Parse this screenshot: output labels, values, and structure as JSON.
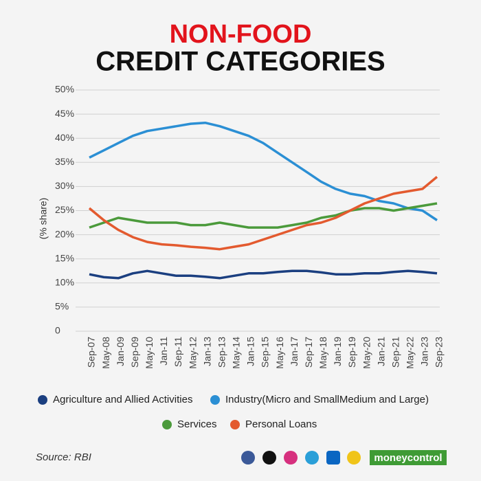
{
  "chart_data": {
    "type": "line",
    "title": "NON-FOOD",
    "subtitle": "CREDIT CATEGORIES",
    "y_label": "(% share)",
    "categories": [
      "Sep-07",
      "May-08",
      "Jan-09",
      "Sep-09",
      "May-10",
      "Jan-11",
      "Sep-11",
      "May-12",
      "Jan-13",
      "Sep-13",
      "May-14",
      "Jan-15",
      "Sep-15",
      "May-16",
      "Jan-17",
      "Sep-17",
      "May-18",
      "Jan-19",
      "Sep-19",
      "May-20",
      "Jan-21",
      "Sep-21",
      "May-22",
      "Jan-23",
      "Sep-23"
    ],
    "series": [
      {
        "name": "Agriculture and Allied Activities",
        "color": "#1b3f80",
        "values": [
          11.8,
          11.2,
          11.0,
          12.0,
          12.5,
          12.0,
          11.5,
          11.5,
          11.3,
          11.0,
          11.5,
          12.0,
          12.0,
          12.3,
          12.5,
          12.5,
          12.2,
          11.8,
          11.8,
          12.0,
          12.0,
          12.3,
          12.5,
          12.3,
          12.0
        ]
      },
      {
        "name": "Industry(Micro and SmallMedium and Large)",
        "color": "#2b8fd4",
        "values": [
          36.0,
          37.5,
          39.0,
          40.5,
          41.5,
          42.0,
          42.5,
          43.0,
          43.2,
          42.5,
          41.5,
          40.5,
          39.0,
          37.0,
          35.0,
          33.0,
          31.0,
          29.5,
          28.5,
          28.0,
          27.0,
          26.5,
          25.5,
          25.0,
          23.0
        ]
      },
      {
        "name": "Services",
        "color": "#4b9a3b",
        "values": [
          21.5,
          22.5,
          23.5,
          23.0,
          22.5,
          22.5,
          22.5,
          22.0,
          22.0,
          22.5,
          22.0,
          21.5,
          21.5,
          21.5,
          22.0,
          22.5,
          23.5,
          24.0,
          25.0,
          25.5,
          25.5,
          25.0,
          25.5,
          26.0,
          26.5
        ]
      },
      {
        "name": "Personal Loans",
        "color": "#e35a2f",
        "values": [
          25.5,
          23.0,
          21.0,
          19.5,
          18.5,
          18.0,
          17.8,
          17.5,
          17.3,
          17.0,
          17.5,
          18.0,
          19.0,
          20.0,
          21.0,
          22.0,
          22.5,
          23.5,
          25.0,
          26.5,
          27.5,
          28.5,
          29.0,
          29.5,
          32.0
        ]
      }
    ],
    "ylim": [
      0,
      50
    ],
    "yticks": [
      0,
      {
        "value": 5,
        "label": "5%"
      },
      {
        "value": 10,
        "label": "10%"
      },
      {
        "value": 15,
        "label": "15%"
      },
      {
        "value": 20,
        "label": "20%"
      },
      {
        "value": 25,
        "label": "25%"
      },
      {
        "value": 30,
        "label": "30%"
      },
      {
        "value": 35,
        "label": "35%"
      },
      {
        "value": 40,
        "label": "40%"
      },
      {
        "value": 45,
        "label": "45%"
      },
      {
        "value": 50,
        "label": "50%"
      }
    ],
    "grid": true,
    "source": "Source: RBI",
    "brand": "moneycontrol"
  }
}
